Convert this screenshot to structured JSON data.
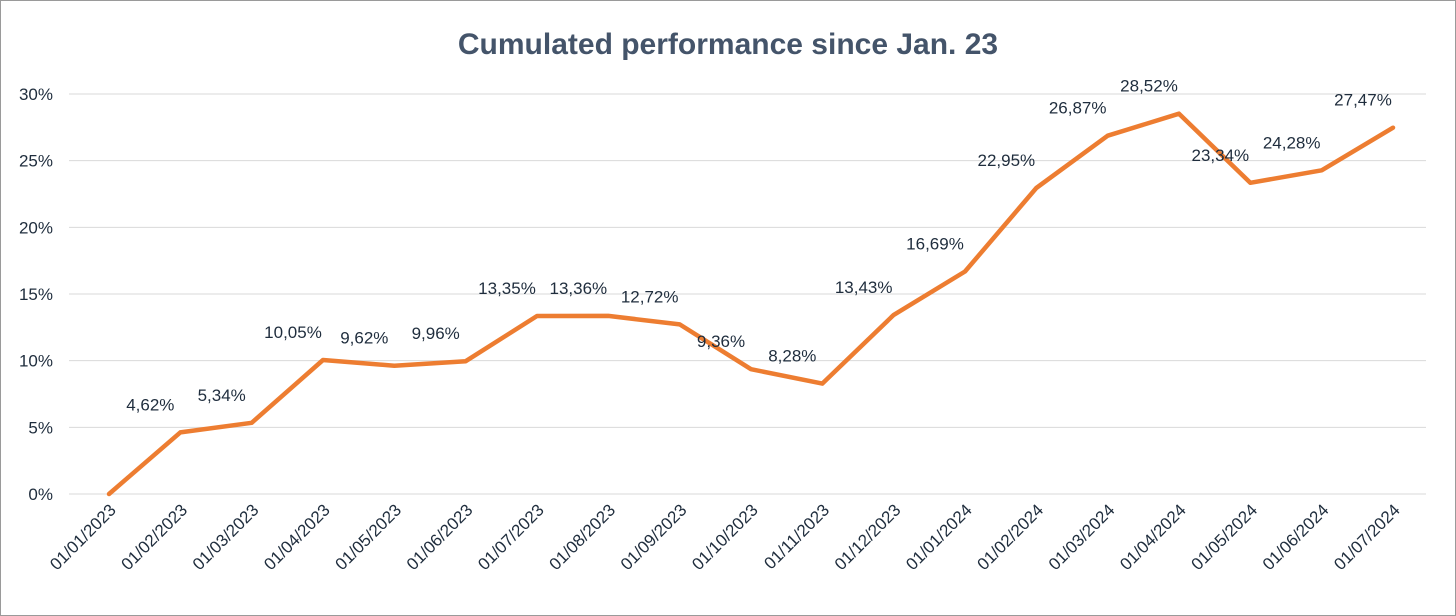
{
  "chart_data": {
    "type": "line",
    "title": "Cumulated performance since Jan. 23",
    "xlabel": "",
    "ylabel": "",
    "ylim": [
      0,
      30
    ],
    "y_ticks": [
      0,
      5,
      10,
      15,
      20,
      25,
      30
    ],
    "y_tick_labels": [
      "0%",
      "5%",
      "10%",
      "15%",
      "20%",
      "25%",
      "30%"
    ],
    "grid": true,
    "legend": "none",
    "categories": [
      "01/01/2023",
      "01/02/2023",
      "01/03/2023",
      "01/04/2023",
      "01/05/2023",
      "01/06/2023",
      "01/07/2023",
      "01/08/2023",
      "01/09/2023",
      "01/10/2023",
      "01/11/2023",
      "01/12/2023",
      "01/01/2024",
      "01/02/2024",
      "01/03/2024",
      "01/04/2024",
      "01/05/2024",
      "01/06/2024",
      "01/07/2024"
    ],
    "series": [
      {
        "color": "#ed7d31",
        "values": [
          0,
          4.62,
          5.34,
          10.05,
          9.62,
          9.96,
          13.35,
          13.36,
          12.72,
          9.36,
          8.28,
          13.43,
          16.69,
          22.95,
          26.87,
          28.52,
          23.34,
          24.28,
          27.47
        ],
        "labels": [
          "",
          "4,62%",
          "5,34%",
          "10,05%",
          "9,62%",
          "9,96%",
          "13,35%",
          "13,36%",
          "12,72%",
          "9,36%",
          "8,28%",
          "13,43%",
          "16,69%",
          "22,95%",
          "26,87%",
          "28,52%",
          "23,34%",
          "24,28%",
          "27,47%"
        ]
      }
    ]
  }
}
